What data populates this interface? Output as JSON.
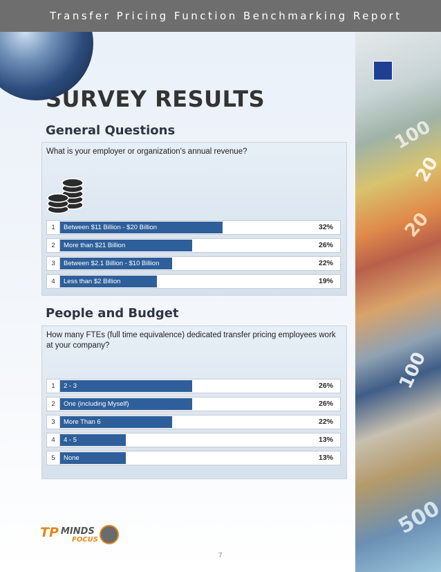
{
  "header": {
    "title": "Transfer Pricing Function Benchmarking Report"
  },
  "section_title": "SURVEY RESULTS",
  "sections": [
    {
      "heading": "General Questions",
      "question": "What is your employer or organization's annual revenue?",
      "answers": [
        {
          "rank": "1",
          "label": "Between $11 Billion - $20 Billion",
          "percent": "32%",
          "value": 32
        },
        {
          "rank": "2",
          "label": "More than $21 Billion",
          "percent": "26%",
          "value": 26
        },
        {
          "rank": "3",
          "label": "Between $2.1 Billion - $10 Billion",
          "percent": "22%",
          "value": 22
        },
        {
          "rank": "4",
          "label": "Less than $2 Billion",
          "percent": "19%",
          "value": 19
        }
      ]
    },
    {
      "heading": "People and Budget",
      "question": "How many FTEs (full time equivalence) dedicated transfer pricing employees work at your company?",
      "answers": [
        {
          "rank": "1",
          "label": "2 - 3",
          "percent": "26%",
          "value": 26
        },
        {
          "rank": "2",
          "label": "One (including Myself)",
          "percent": "26%",
          "value": 26
        },
        {
          "rank": "3",
          "label": "More Than 6",
          "percent": "22%",
          "value": 22
        },
        {
          "rank": "4",
          "label": "4 - 5",
          "percent": "13%",
          "value": 13
        },
        {
          "rank": "5",
          "label": "None",
          "percent": "13%",
          "value": 13
        }
      ]
    }
  ],
  "logo": {
    "tp": "TP",
    "minds": "MINDS",
    "focus": "FOCUS"
  },
  "page_number": "7",
  "colors": {
    "bar": "#2e5f9a",
    "header": "#6e6e6e",
    "logo_accent": "#e0891e"
  },
  "icons": [
    "coins-icon",
    "globe-image",
    "banknotes-image"
  ]
}
